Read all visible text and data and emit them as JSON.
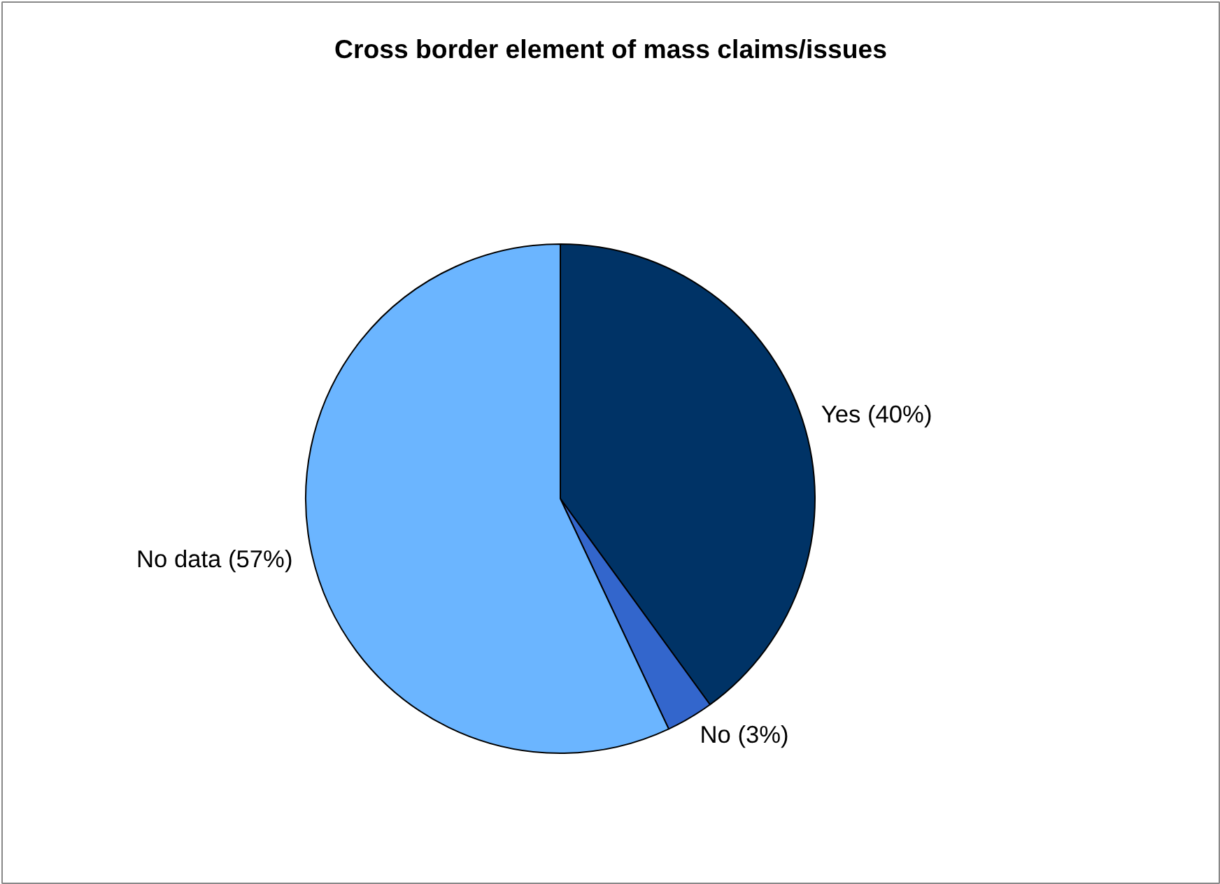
{
  "chart_data": {
    "type": "pie",
    "title": "Cross border element of mass claims/issues",
    "categories": [
      "Yes (40%)",
      "No (3%)",
      "No data (57%)"
    ],
    "values": [
      40,
      3,
      57
    ],
    "colors": [
      "#003366",
      "#3366cc",
      "#6bb5ff"
    ]
  }
}
